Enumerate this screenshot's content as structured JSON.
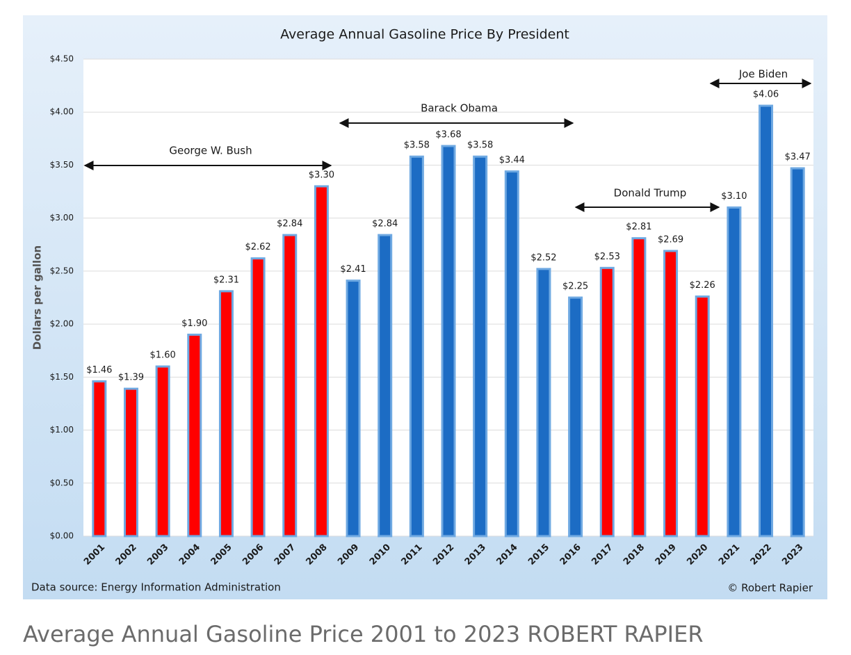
{
  "chart_data": {
    "type": "bar",
    "title": "Average Annual Gasoline Price By President",
    "y_label": "Dollars per gallon",
    "categories": [
      "2001",
      "2002",
      "2003",
      "2004",
      "2005",
      "2006",
      "2007",
      "2008",
      "2009",
      "2010",
      "2011",
      "2012",
      "2013",
      "2014",
      "2015",
      "2016",
      "2017",
      "2018",
      "2019",
      "2020",
      "2021",
      "2022",
      "2023"
    ],
    "values": [
      1.46,
      1.39,
      1.6,
      1.9,
      2.31,
      2.62,
      2.84,
      3.3,
      2.41,
      2.84,
      3.58,
      3.68,
      3.58,
      3.44,
      2.52,
      2.25,
      2.53,
      2.81,
      2.69,
      2.26,
      3.1,
      4.06,
      3.47
    ],
    "value_labels": [
      "$1.46",
      "$1.39",
      "$1.60",
      "$1.90",
      "$2.31",
      "$2.62",
      "$2.84",
      "$3.30",
      "$2.41",
      "$2.84",
      "$3.58",
      "$3.68",
      "$3.58",
      "$3.44",
      "$2.52",
      "$2.25",
      "$2.53",
      "$2.81",
      "$2.69",
      "$2.26",
      "$3.10",
      "$4.06",
      "$3.47"
    ],
    "colors": [
      "#ff0000",
      "#ff0000",
      "#ff0000",
      "#ff0000",
      "#ff0000",
      "#ff0000",
      "#ff0000",
      "#ff0000",
      "#1c6cc4",
      "#1c6cc4",
      "#1c6cc4",
      "#1c6cc4",
      "#1c6cc4",
      "#1c6cc4",
      "#1c6cc4",
      "#1c6cc4",
      "#ff0000",
      "#ff0000",
      "#ff0000",
      "#ff0000",
      "#1c6cc4",
      "#1c6cc4",
      "#1c6cc4"
    ],
    "ylim": [
      0,
      4.5
    ],
    "yticks": [
      {
        "value": 0,
        "label": "$0.00"
      },
      {
        "value": 0.5,
        "label": "$0.50"
      },
      {
        "value": 1,
        "label": "$1.00"
      },
      {
        "value": 1.5,
        "label": "$1.50"
      },
      {
        "value": 2,
        "label": "$2.00"
      },
      {
        "value": 2.5,
        "label": "$2.50"
      },
      {
        "value": 3,
        "label": "$3.00"
      },
      {
        "value": 3.5,
        "label": "$3.50"
      },
      {
        "value": 4,
        "label": "$4.00"
      },
      {
        "value": 4.5,
        "label": "$4.50"
      }
    ],
    "grid": true,
    "annotations": [
      "George W. Bush",
      "Barack Obama",
      "Donald Trump",
      "Joe Biden"
    ],
    "source": "Data source: Energy Information Administration",
    "credit": "© Robert Rapier"
  },
  "caption": "Average Annual Gasoline Price 2001 to 2023 ROBERT RAPIER"
}
